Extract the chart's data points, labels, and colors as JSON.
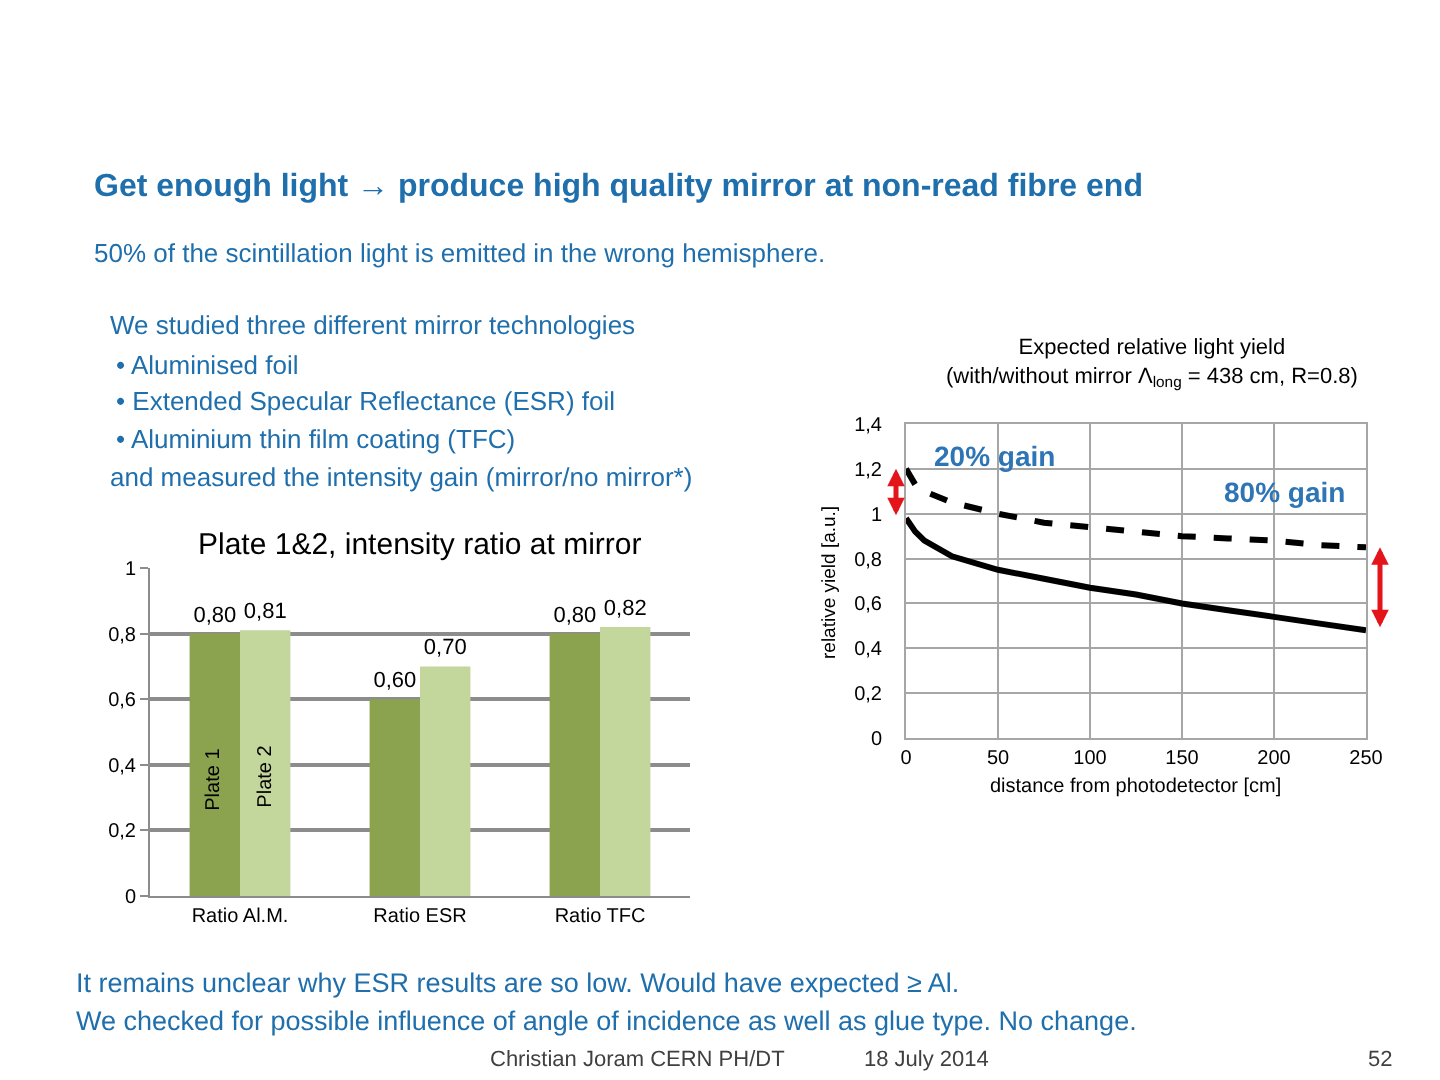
{
  "chart_data": [
    {
      "type": "other",
      "title": "Get enough light → produce high quality mirror at non-read fibre end",
      "subtitle": "50% of the scintillation light is emitted in the wrong hemisphere.",
      "annotations": [
        "We studied three different mirror technologies",
        "• Aluminised foil",
        "• Extended Specular Reflectance (ESR) foil",
        "• Aluminium thin film coating (TFC)",
        "and measured the intensity gain (mirror/no mirror*)",
        "It remains unclear why ESR results are so low. Would have expected ≥ Al.",
        "We checked for possible influence of angle of incidence as well as glue type. No change.",
        "Christian Joram CERN PH/DT",
        "18 July 2014",
        "52"
      ]
    },
    {
      "type": "bar",
      "title": "Plate 1&2, intensity ratio at mirror",
      "categories": [
        "Ratio Al.M.",
        "Ratio ESR",
        "Ratio TFC"
      ],
      "series": [
        {
          "name": "Plate 1",
          "color": "#8ba24e",
          "values": [
            0.8,
            0.6,
            0.8
          ],
          "value_labels": [
            "0,80",
            "0,60",
            "0,80"
          ]
        },
        {
          "name": "Plate 2",
          "color": "#c3d69b",
          "values": [
            0.81,
            0.7,
            0.82
          ],
          "value_labels": [
            "0,81",
            "0,70",
            "0,82"
          ]
        }
      ],
      "ylim": [
        0,
        1
      ],
      "yticks": [
        0,
        {
          "value": 0.2,
          "label": "0,2"
        },
        {
          "value": 0.4,
          "label": "0,4"
        },
        {
          "value": 0.6,
          "label": "0,6"
        },
        {
          "value": 0.8,
          "label": "0,8"
        },
        1
      ],
      "grid": "y"
    },
    {
      "type": "line",
      "title": "Expected relative light yield\n(with/without mirror Λ$_{long}$ = 438 cm, R=0.8)",
      "xlabel": "distance from photodetector [cm]",
      "ylabel": "relative yield [a.u.]",
      "series": [
        {
          "color": "#000000",
          "line_style": "dashed",
          "x": [
            0,
            5,
            10,
            25,
            50,
            75,
            100,
            125,
            150,
            175,
            200,
            225,
            250
          ],
          "values": [
            1.2,
            1.13,
            1.1,
            1.05,
            1.0,
            0.96,
            0.94,
            0.92,
            0.9,
            0.89,
            0.88,
            0.86,
            0.85
          ]
        },
        {
          "color": "#000000",
          "line_style": "solid",
          "x": [
            0,
            5,
            10,
            25,
            50,
            75,
            100,
            125,
            150,
            175,
            200,
            225,
            250
          ],
          "values": [
            0.98,
            0.92,
            0.88,
            0.81,
            0.75,
            0.71,
            0.67,
            0.64,
            0.6,
            0.57,
            0.54,
            0.51,
            0.48
          ]
        }
      ],
      "xlim": [
        0,
        250
      ],
      "xticks": [
        0,
        50,
        100,
        150,
        200,
        250
      ],
      "ylim": [
        0,
        1.4
      ],
      "yticks": [
        0,
        {
          "value": 0.2,
          "label": "0,2"
        },
        {
          "value": 0.4,
          "label": "0,4"
        },
        {
          "value": 0.6,
          "label": "0,6"
        },
        {
          "value": 0.8,
          "label": "0,8"
        },
        1,
        {
          "value": 1.2,
          "label": "1,2"
        },
        {
          "value": 1.4,
          "label": "1,4"
        }
      ],
      "grid": true,
      "annotations": [
        {
          "text": "20% gain",
          "x": 0,
          "y": 1.2
        },
        {
          "text": "80% gain",
          "x": 250,
          "y": 0.85
        }
      ]
    }
  ]
}
